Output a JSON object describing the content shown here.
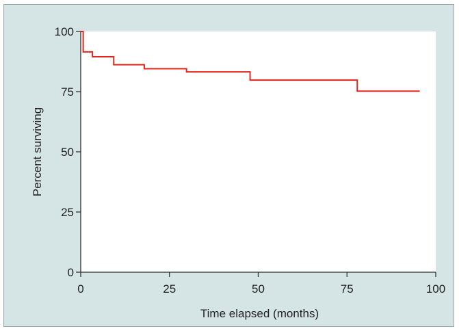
{
  "colors": {
    "frame_background": "#d5e4e4",
    "plot_background": "#ffffff",
    "series_line": "#e0261d",
    "axis": "#333333"
  },
  "chart_data": {
    "type": "line",
    "step": true,
    "title": "",
    "xlabel": "Time elapsed (months)",
    "ylabel": "Percent surviving",
    "xlim": [
      0,
      100
    ],
    "ylim": [
      0,
      100
    ],
    "xticks": [
      0,
      25,
      50,
      75,
      100
    ],
    "yticks": [
      0,
      25,
      50,
      75,
      100
    ],
    "grid": false,
    "legend": "none",
    "series": [
      {
        "points": [
          {
            "x": 0,
            "y": 100
          },
          {
            "x": 0.7,
            "y": 91.5
          },
          {
            "x": 3.3,
            "y": 89.5
          },
          {
            "x": 9.3,
            "y": 86.2
          },
          {
            "x": 17.9,
            "y": 84.5
          },
          {
            "x": 29.8,
            "y": 83.2
          },
          {
            "x": 47.7,
            "y": 79.8
          },
          {
            "x": 77.9,
            "y": 75.2
          },
          {
            "x": 95.5,
            "y": 75.2
          }
        ]
      }
    ]
  }
}
